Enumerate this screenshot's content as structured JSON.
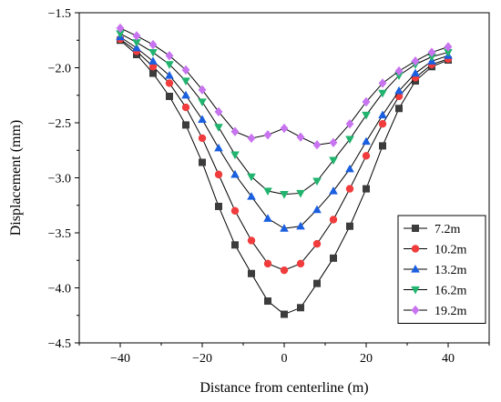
{
  "chart_data": {
    "type": "line",
    "title": "",
    "xlabel": "Distance from centerline (m)",
    "ylabel": "Displacement (mm)",
    "xlim": [
      -50,
      50
    ],
    "ylim": [
      -4.5,
      -1.5
    ],
    "xticks": [
      -40,
      -20,
      0,
      20,
      40
    ],
    "yticks": [
      -4.5,
      -4.0,
      -3.5,
      -3.0,
      -2.5,
      -2.0,
      -1.5
    ],
    "xtick_labels": [
      "−40",
      "−20",
      "0",
      "20",
      "40"
    ],
    "ytick_labels": [
      "−4.5",
      "−4.0",
      "−3.5",
      "−3.0",
      "−2.5",
      "−2.0",
      "−1.5"
    ],
    "grid": false,
    "legend_position": "bottom-right",
    "x": [
      -40,
      -36,
      -32,
      -28,
      -24,
      -20,
      -16,
      -12,
      -8,
      -4,
      0,
      4,
      8,
      12,
      16,
      20,
      24,
      28,
      32,
      36,
      40
    ],
    "series": [
      {
        "name": "7.2m",
        "color": "#3c3c3c",
        "marker": "square",
        "values": [
          -1.75,
          -1.88,
          -2.05,
          -2.26,
          -2.52,
          -2.86,
          -3.26,
          -3.61,
          -3.87,
          -4.12,
          -4.24,
          -4.18,
          -3.96,
          -3.73,
          -3.44,
          -3.1,
          -2.71,
          -2.37,
          -2.12,
          -1.99,
          -1.93
        ]
      },
      {
        "name": "10.2m",
        "color": "#f03c3c",
        "marker": "circle",
        "values": [
          -1.74,
          -1.85,
          -1.99,
          -2.14,
          -2.36,
          -2.64,
          -2.97,
          -3.3,
          -3.57,
          -3.78,
          -3.84,
          -3.78,
          -3.6,
          -3.38,
          -3.1,
          -2.8,
          -2.51,
          -2.26,
          -2.09,
          -1.97,
          -1.92
        ]
      },
      {
        "name": "13.2m",
        "color": "#1a5fe0",
        "marker": "triangle-up",
        "values": [
          -1.72,
          -1.82,
          -1.94,
          -2.07,
          -2.25,
          -2.47,
          -2.73,
          -2.97,
          -3.17,
          -3.37,
          -3.46,
          -3.44,
          -3.29,
          -3.12,
          -2.92,
          -2.67,
          -2.43,
          -2.21,
          -2.05,
          -1.94,
          -1.89
        ]
      },
      {
        "name": "16.2m",
        "color": "#21b46e",
        "marker": "triangle-down",
        "values": [
          -1.69,
          -1.77,
          -1.86,
          -1.97,
          -2.12,
          -2.31,
          -2.54,
          -2.79,
          -2.99,
          -3.12,
          -3.15,
          -3.14,
          -3.03,
          -2.84,
          -2.65,
          -2.43,
          -2.23,
          -2.07,
          -1.97,
          -1.9,
          -1.86
        ]
      },
      {
        "name": "19.2m",
        "color": "#c874f0",
        "marker": "diamond",
        "values": [
          -1.64,
          -1.71,
          -1.79,
          -1.89,
          -2.02,
          -2.2,
          -2.4,
          -2.58,
          -2.64,
          -2.61,
          -2.55,
          -2.63,
          -2.7,
          -2.68,
          -2.51,
          -2.31,
          -2.14,
          -2.03,
          -1.94,
          -1.86,
          -1.81
        ]
      }
    ]
  }
}
